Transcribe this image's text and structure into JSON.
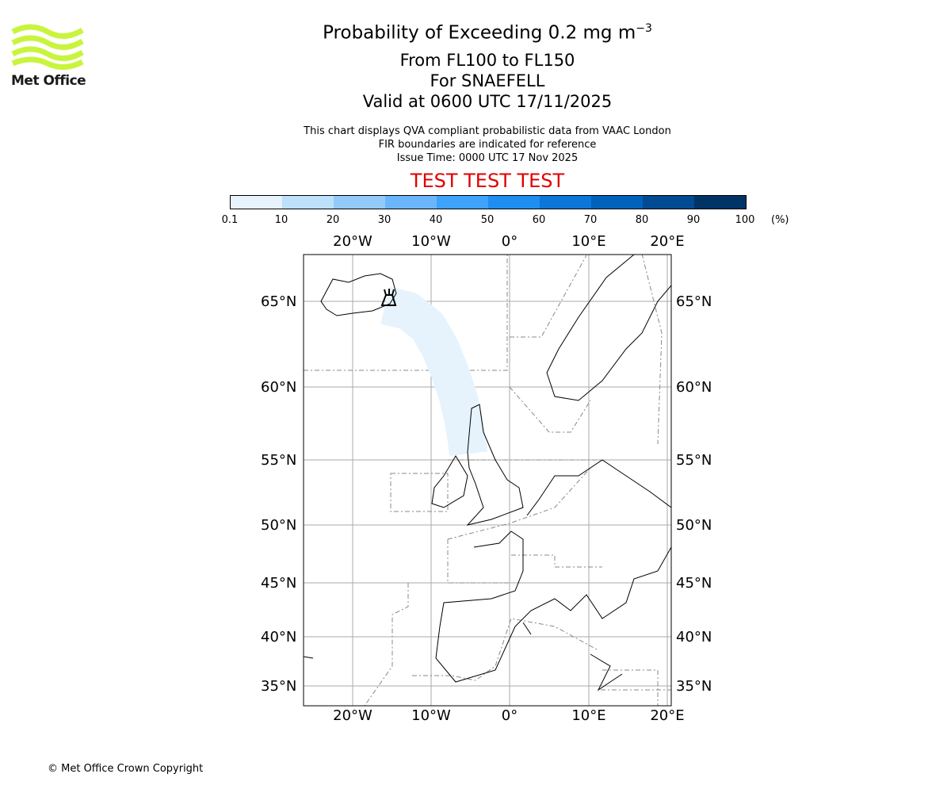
{
  "logo": {
    "text": "Met Office",
    "color": "#c8f53c"
  },
  "title": {
    "main": "Probability of Exceeding 0.2 mg m",
    "superscript": "−3",
    "levels": "From FL100 to FL150",
    "volcano": "For SNAEFELL",
    "valid": "Valid at 0600 UTC 17/11/2025"
  },
  "info": {
    "line1": "This chart displays QVA compliant probabilistic data from VAAC London",
    "line2": "FIR boundaries are indicated for reference",
    "line3": "Issue Time: 0000 UTC 17 Nov 2025"
  },
  "test_banner": "TEST TEST TEST",
  "colorbar": {
    "ticks": [
      "0.1",
      "10",
      "20",
      "30",
      "40",
      "50",
      "60",
      "70",
      "80",
      "90",
      "100"
    ],
    "unit": "(%)",
    "colors": [
      "#e6f3fd",
      "#bde0fb",
      "#94cafa",
      "#6bb6fa",
      "#3fa2fb",
      "#1f8ef1",
      "#0c77d9",
      "#0062bb",
      "#004b92",
      "#003366"
    ]
  },
  "map": {
    "lon_labels": [
      "20°W",
      "10°W",
      "0°",
      "10°E",
      "20°E"
    ],
    "lat_labels": [
      "65°N",
      "60°N",
      "55°N",
      "50°N",
      "45°N",
      "40°N",
      "35°N"
    ]
  },
  "footer": "© Met Office Crown Copyright"
}
